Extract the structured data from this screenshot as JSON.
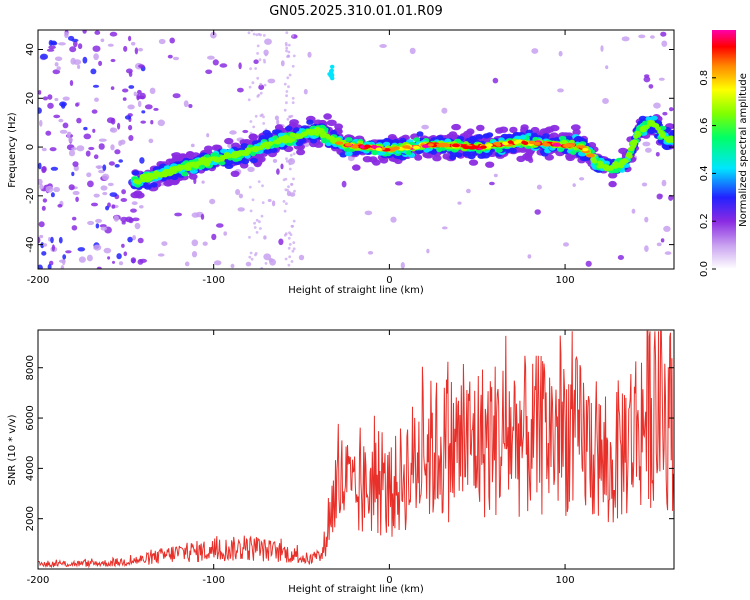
{
  "title": "GN05.2025.310.01.01.R09",
  "chart_data": [
    {
      "type": "heatmap",
      "id": "spectrogram",
      "xlabel": "Height of straight line (km)",
      "ylabel": "Frequency (Hz)",
      "xlim": [
        -200,
        162
      ],
      "ylim": [
        -50,
        48
      ],
      "xticks": [
        -200,
        -100,
        0,
        100
      ],
      "xtick_labels": [
        "-200",
        "-100",
        "0",
        "100"
      ],
      "yticks": [
        -40,
        -20,
        0,
        20,
        40
      ],
      "ytick_labels": [
        "-40",
        "-20",
        "0",
        "20",
        "40"
      ],
      "ridge": {
        "x": [
          -145,
          -130,
          -115,
          -100,
          -85,
          -70,
          -55,
          -40,
          -35,
          -25,
          0,
          25,
          50,
          75,
          100,
          110,
          118,
          125,
          135,
          142,
          150,
          158
        ],
        "y": [
          -14,
          -11,
          -8,
          -5,
          -3,
          1,
          4,
          7,
          4,
          1,
          -1,
          1,
          0,
          2,
          1,
          0,
          -6,
          -9,
          -6,
          7,
          10,
          3
        ]
      },
      "colorbar": {
        "label": "Normalized spectral amplitude",
        "range": [
          0,
          1
        ],
        "ticks": [
          0,
          0.2,
          0.4,
          0.6,
          0.8
        ],
        "tick_labels": [
          "0.0",
          "0.2",
          "0.4",
          "0.6",
          "0.8"
        ],
        "colors": [
          "#ffffff",
          "#c8a0f0",
          "#8a2be2",
          "#2222ff",
          "#00e5ff",
          "#00ff66",
          "#80ff00",
          "#ffff00",
          "#ff8800",
          "#ff0000",
          "#ff00aa"
        ]
      }
    },
    {
      "type": "line",
      "id": "snr",
      "xlabel": "Height of straight line (km)",
      "ylabel": "SNR (10 * v/v)",
      "xlim": [
        -200,
        162
      ],
      "ylim": [
        0,
        9500
      ],
      "xticks": [
        -200,
        -100,
        0,
        100
      ],
      "xtick_labels": [
        "-200",
        "-100",
        "0",
        "100"
      ],
      "yticks": [
        2000,
        4000,
        6000,
        8000
      ],
      "ytick_labels": [
        "2000",
        "4000",
        "6000",
        "8000"
      ],
      "series": [
        {
          "name": "SNR",
          "color": "#e8302a",
          "envelope_x": [
            -200,
            -160,
            -140,
            -120,
            -100,
            -80,
            -60,
            -45,
            -38,
            -35,
            -30,
            -25,
            -20,
            -10,
            0,
            10,
            20,
            30,
            40,
            50,
            60,
            70,
            80,
            90,
            100,
            110,
            120,
            125,
            130,
            140,
            150,
            160
          ],
          "envelope_y": [
            200,
            250,
            400,
            700,
            800,
            900,
            700,
            400,
            600,
            2000,
            3500,
            3800,
            3000,
            3700,
            3200,
            4200,
            5000,
            5200,
            5300,
            5500,
            5600,
            5800,
            5600,
            5800,
            6000,
            5500,
            4800,
            3800,
            5000,
            6000,
            7000,
            6500
          ]
        }
      ]
    }
  ]
}
